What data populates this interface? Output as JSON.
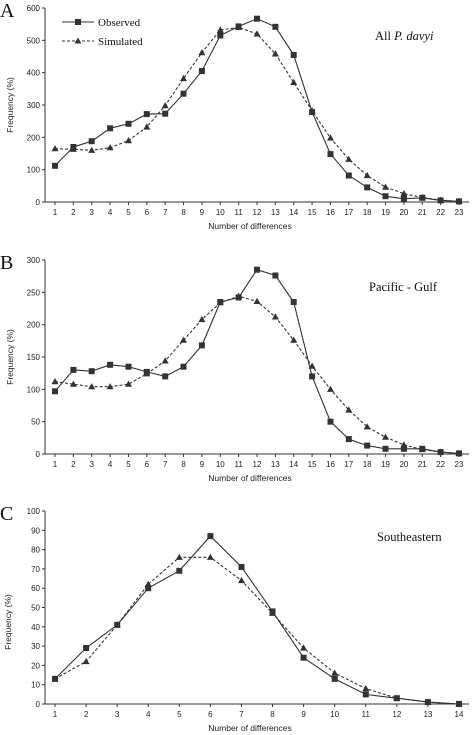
{
  "chart_data": [
    {
      "type": "line",
      "panel_letter": "A",
      "title_prefix": "All ",
      "title_italic": "P. davyi",
      "xlabel": "Number of differences",
      "ylabel": "Frequency (%)",
      "x": [
        1,
        2,
        3,
        4,
        5,
        6,
        7,
        8,
        9,
        10,
        11,
        12,
        13,
        14,
        15,
        16,
        17,
        18,
        19,
        20,
        21,
        22,
        23
      ],
      "ylim": [
        0,
        600
      ],
      "yticks": [
        0,
        100,
        200,
        300,
        400,
        500,
        600
      ],
      "legend": {
        "position": "top-left",
        "observed_label": "Observed",
        "simulated_label": "Simulated"
      },
      "series": [
        {
          "name": "Observed",
          "marker": "square",
          "line": "solid",
          "values": [
            112,
            170,
            188,
            228,
            242,
            272,
            273,
            335,
            405,
            515,
            543,
            567,
            542,
            455,
            278,
            148,
            82,
            45,
            18,
            10,
            13,
            5,
            2
          ]
        },
        {
          "name": "Simulated",
          "marker": "triangle",
          "line": "dashed",
          "values": [
            165,
            163,
            160,
            168,
            190,
            232,
            298,
            382,
            462,
            532,
            540,
            520,
            458,
            370,
            282,
            198,
            132,
            82,
            46,
            26,
            14,
            6,
            2
          ]
        }
      ]
    },
    {
      "type": "line",
      "panel_letter": "B",
      "title": "Pacific - Gulf",
      "xlabel": "Number of differences",
      "ylabel": "Frequency (%)",
      "x": [
        1,
        2,
        3,
        4,
        5,
        6,
        7,
        8,
        9,
        10,
        11,
        12,
        13,
        14,
        15,
        16,
        17,
        18,
        19,
        20,
        21,
        22,
        23
      ],
      "ylim": [
        0,
        300
      ],
      "yticks": [
        0,
        50,
        100,
        150,
        200,
        250,
        300
      ],
      "series": [
        {
          "name": "Observed",
          "marker": "square",
          "line": "solid",
          "values": [
            97,
            130,
            128,
            138,
            135,
            127,
            120,
            135,
            168,
            235,
            242,
            285,
            276,
            235,
            120,
            50,
            23,
            13,
            8,
            8,
            8,
            3,
            1
          ]
        },
        {
          "name": "Simulated",
          "marker": "triangle",
          "line": "dashed",
          "values": [
            112,
            108,
            104,
            104,
            108,
            124,
            144,
            176,
            208,
            234,
            244,
            236,
            212,
            176,
            136,
            100,
            68,
            42,
            26,
            14,
            7,
            3,
            1
          ]
        }
      ]
    },
    {
      "type": "line",
      "panel_letter": "C",
      "title": "Southeastern",
      "xlabel": "Number of differences",
      "ylabel": "Frequency (%)",
      "x": [
        1,
        2,
        3,
        4,
        5,
        6,
        7,
        8,
        9,
        10,
        11,
        12,
        13,
        14
      ],
      "ylim": [
        0,
        100
      ],
      "yticks": [
        0,
        10,
        20,
        30,
        40,
        50,
        60,
        70,
        80,
        90,
        100
      ],
      "series": [
        {
          "name": "Observed",
          "marker": "square",
          "line": "solid",
          "values": [
            13,
            29,
            41,
            60,
            69,
            87,
            71,
            48,
            24,
            13,
            5,
            3,
            1,
            0
          ]
        },
        {
          "name": "Simulated",
          "marker": "triangle",
          "line": "dashed",
          "values": [
            13,
            22,
            41,
            62,
            76,
            76,
            64,
            47,
            29,
            16,
            8,
            3,
            1,
            0
          ]
        }
      ]
    }
  ]
}
